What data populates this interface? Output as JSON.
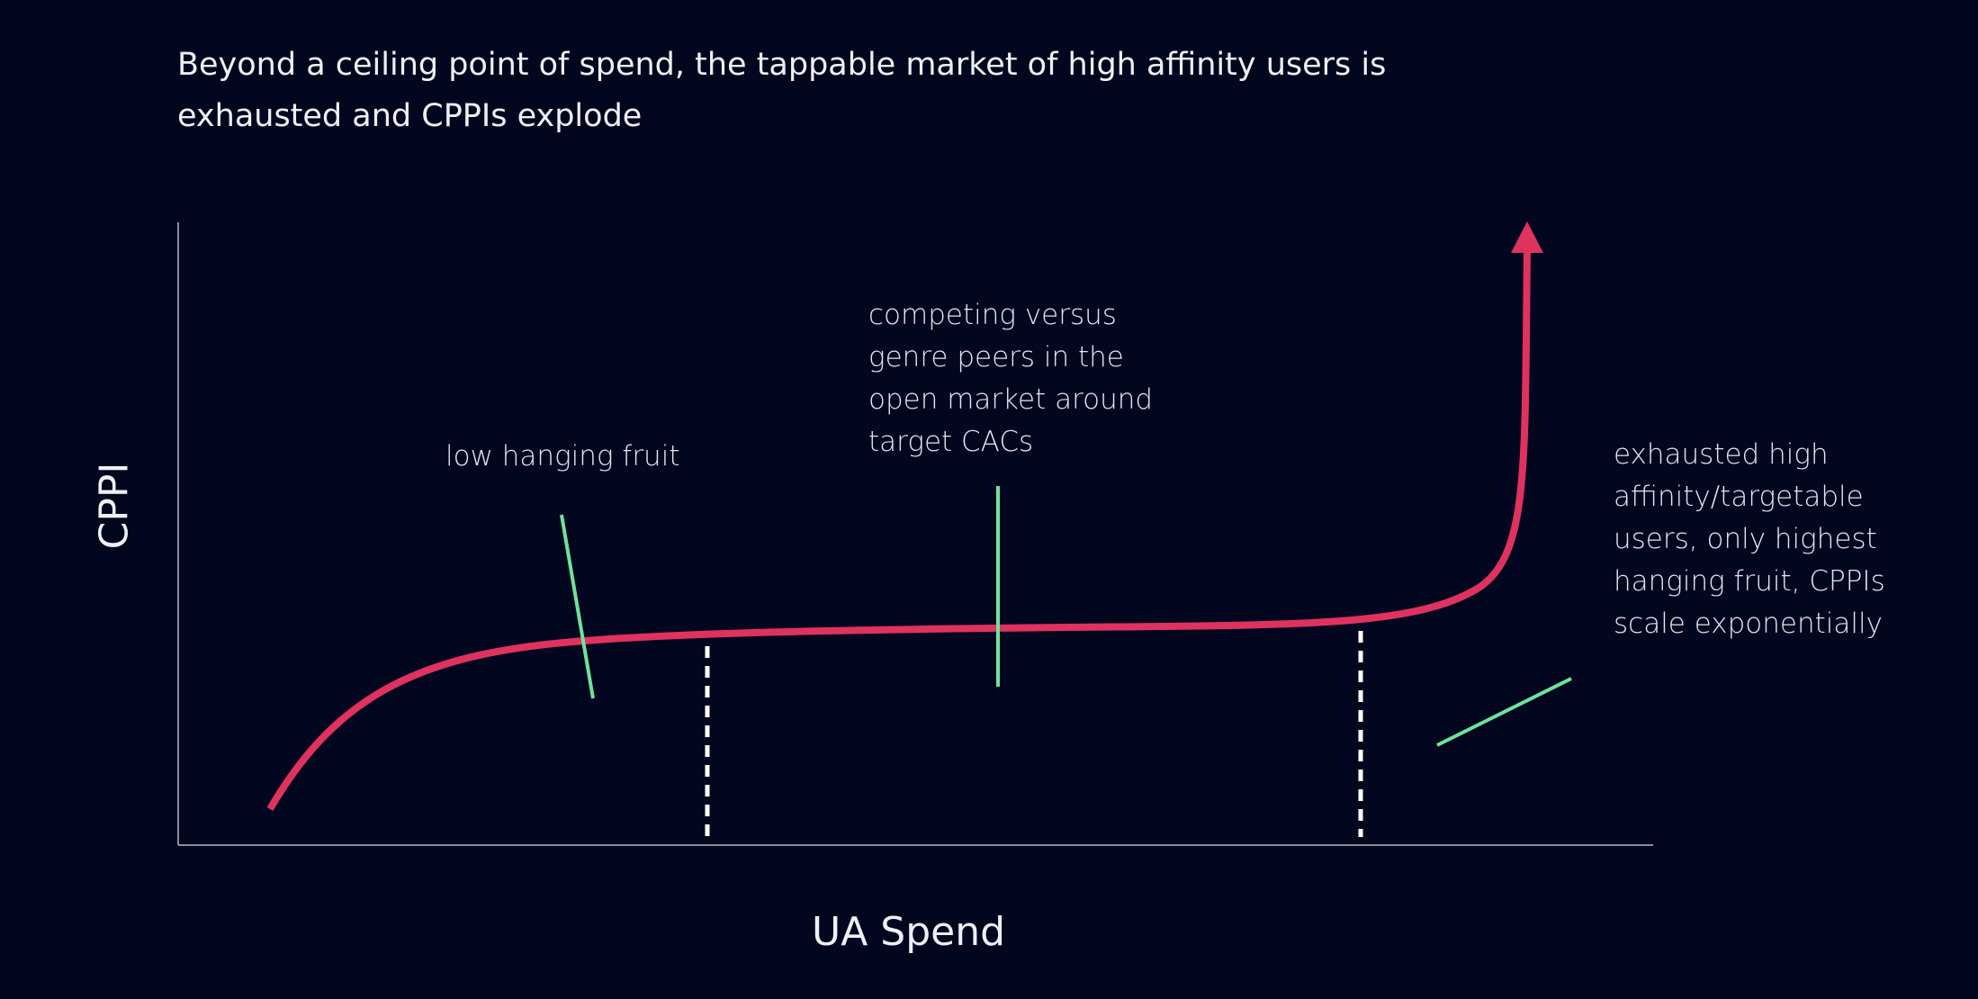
{
  "title": "Beyond a ceiling point of spend, the tappable market of high affinity users is exhausted and CPPIs explode",
  "axes": {
    "x_label": "UA Spend",
    "y_label": "CPPI"
  },
  "annotations": {
    "low_hanging": "low hanging fruit",
    "competing": "competing versus genre peers in the open market around target CACs",
    "exhausted": "exhausted high affinity/targetable users, only highest hanging fruit, CPPIs scale exponentially"
  },
  "colors": {
    "background": "#03061f",
    "curve": "#e0325f",
    "pointer": "#6ee39b",
    "axis": "#8a8d99",
    "divider": "#ffffff"
  }
}
